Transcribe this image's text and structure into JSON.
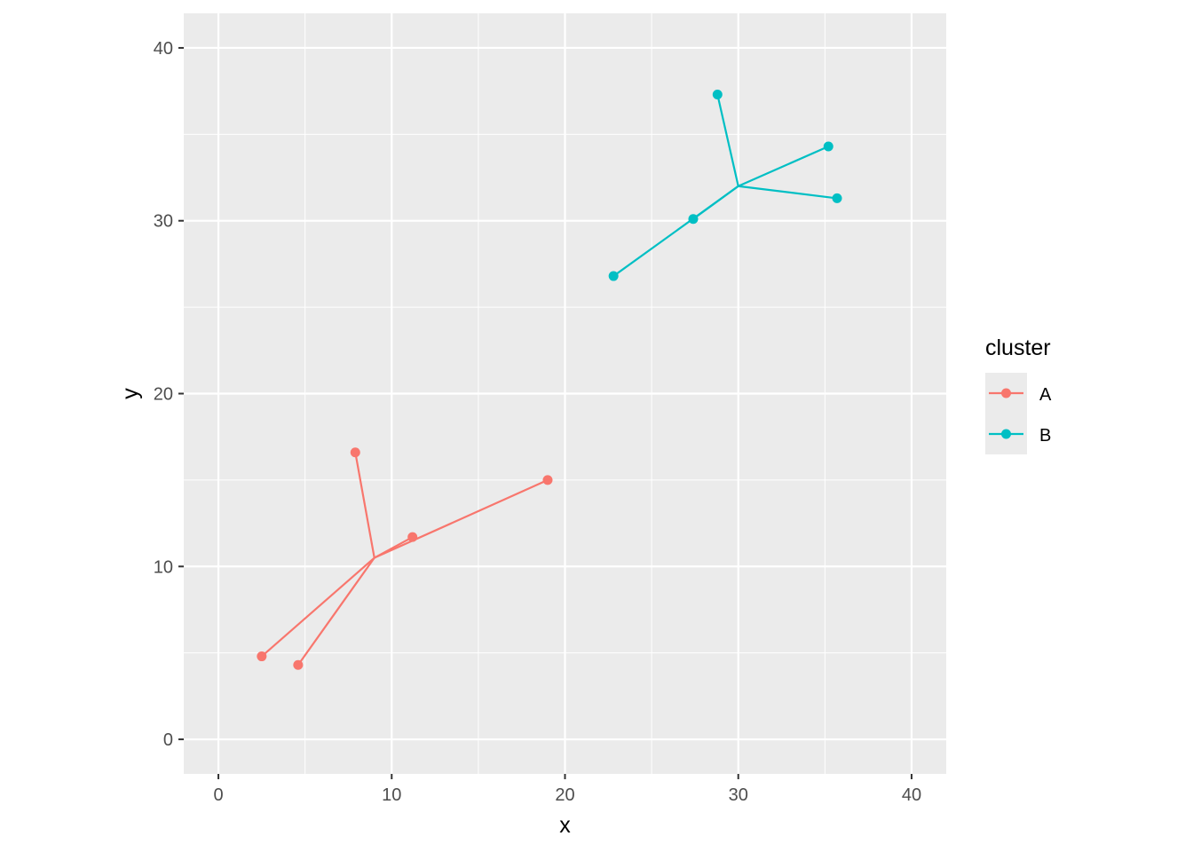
{
  "chart_data": {
    "type": "scatter",
    "xlabel": "x",
    "ylabel": "y",
    "xlim": [
      -2,
      42
    ],
    "ylim": [
      -2,
      42
    ],
    "x_ticks": [
      0,
      10,
      20,
      30,
      40
    ],
    "y_ticks": [
      0,
      10,
      20,
      30,
      40
    ],
    "x_tick_labels": [
      "0",
      "10",
      "20",
      "30",
      "40"
    ],
    "y_tick_labels": [
      "0",
      "10",
      "20",
      "30",
      "40"
    ],
    "grid": true,
    "legend": {
      "title": "cluster",
      "placement": "right",
      "entries": [
        "A",
        "B"
      ]
    },
    "series": [
      {
        "name": "A",
        "color": "#F8766D",
        "center": {
          "x": 9.0,
          "y": 10.5
        },
        "points": [
          {
            "x": 2.5,
            "y": 4.8
          },
          {
            "x": 4.6,
            "y": 4.3
          },
          {
            "x": 7.9,
            "y": 16.6
          },
          {
            "x": 11.2,
            "y": 11.7
          },
          {
            "x": 19.0,
            "y": 15.0
          }
        ]
      },
      {
        "name": "B",
        "color": "#00BFC4",
        "center": {
          "x": 30.0,
          "y": 32.0
        },
        "points": [
          {
            "x": 22.8,
            "y": 26.8
          },
          {
            "x": 27.4,
            "y": 30.1
          },
          {
            "x": 28.8,
            "y": 37.3
          },
          {
            "x": 35.2,
            "y": 34.3
          },
          {
            "x": 35.7,
            "y": 31.3
          }
        ]
      }
    ]
  }
}
